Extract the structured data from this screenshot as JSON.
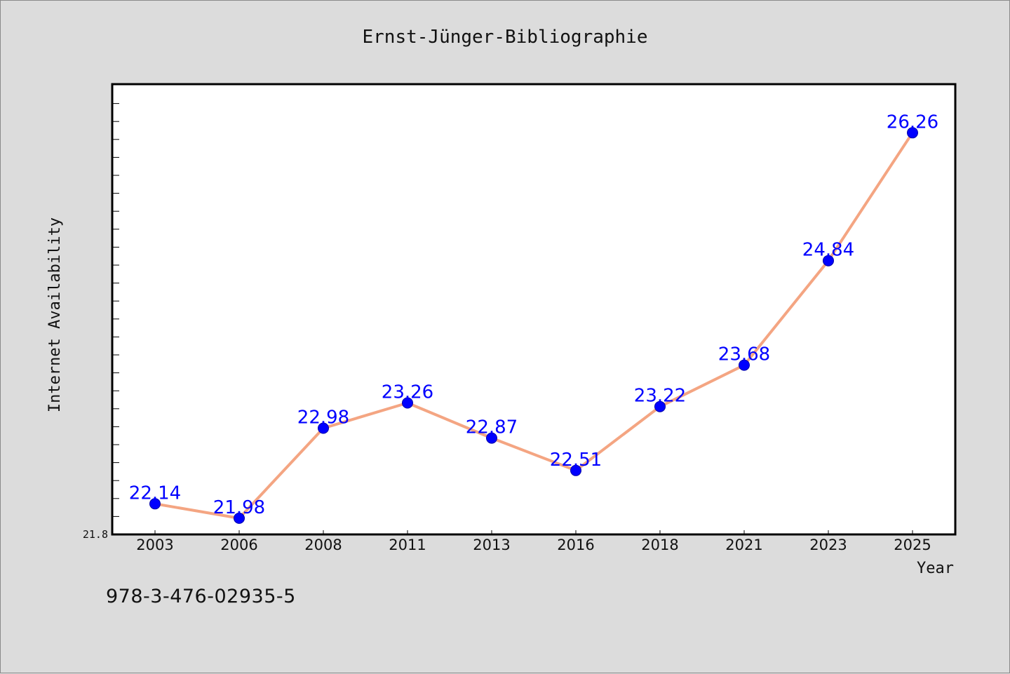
{
  "footnote": "978-3-476-02935-5",
  "colors": {
    "background": "#dcdcdc",
    "plot_background": "#ffffff",
    "line": "#f4a582",
    "marker": "#0000ff",
    "data_label": "#0000ff"
  },
  "chart_data": {
    "type": "line",
    "title": "Ernst-Jünger-Bibliographie",
    "xlabel": "Year",
    "ylabel": "Internet Availability",
    "categories": [
      "2003",
      "2006",
      "2008",
      "2011",
      "2013",
      "2016",
      "2018",
      "2021",
      "2023",
      "2025"
    ],
    "series": [
      {
        "values": [
          22.14,
          21.98,
          22.98,
          23.26,
          22.87,
          22.51,
          23.22,
          23.68,
          24.84,
          26.26
        ]
      }
    ],
    "data_labels": [
      "22.14",
      "21.98",
      "22.98",
      "23.26",
      "22.87",
      "22.51",
      "23.22",
      "23.68",
      "24.84",
      "26.26"
    ],
    "y_tick_label": "21.8",
    "ylim": [
      21.8,
      26.8
    ],
    "grid": false,
    "legend": "none"
  }
}
